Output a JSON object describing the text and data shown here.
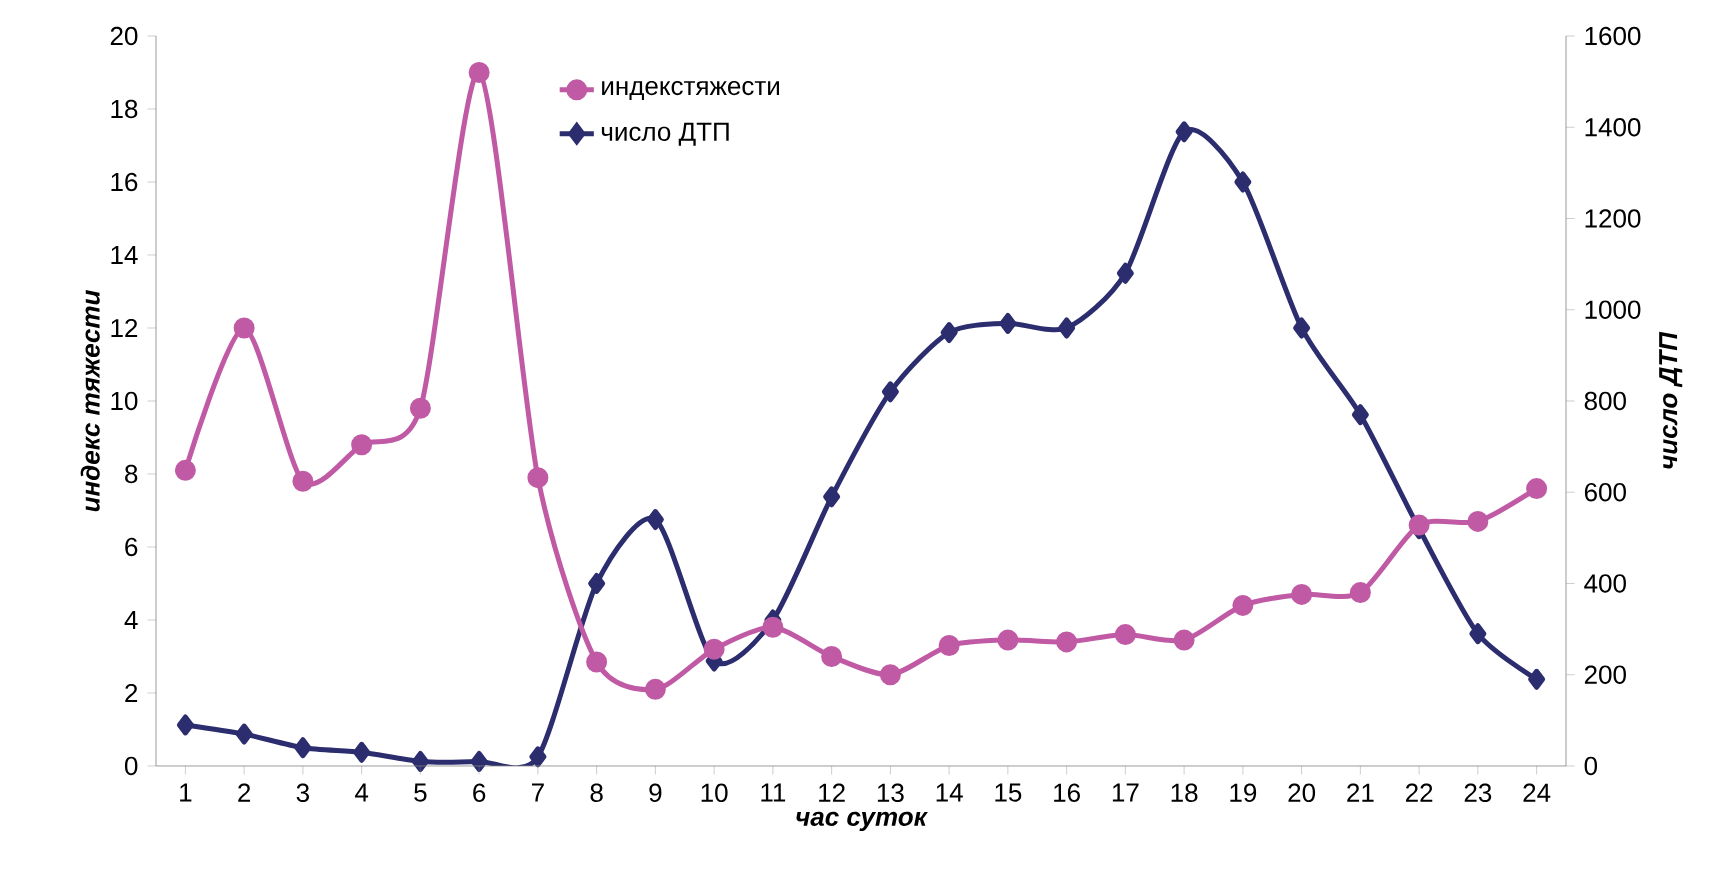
{
  "chart_data": {
    "type": "line",
    "xlabel": "час суток",
    "ylabel": "индекс тяжести",
    "y2label": "число ДТП",
    "categories": [
      "1",
      "2",
      "3",
      "4",
      "5",
      "6",
      "7",
      "8",
      "9",
      "10",
      "11",
      "12",
      "13",
      "14",
      "15",
      "16",
      "17",
      "18",
      "19",
      "20",
      "21",
      "22",
      "23",
      "24"
    ],
    "series": [
      {
        "name": "индекстяжести",
        "color": "#c05aa5",
        "marker": "circle",
        "values": [
          8.1,
          12.0,
          7.8,
          8.8,
          9.8,
          19.0,
          7.9,
          2.85,
          2.1,
          3.2,
          3.8,
          3.0,
          2.5,
          3.3,
          3.45,
          3.4,
          3.6,
          3.45,
          4.4,
          4.7,
          4.75,
          6.6,
          6.7,
          7.6
        ]
      },
      {
        "name": "число ДТП",
        "color": "#2b2d6e",
        "marker": "diamond",
        "axis": "y2",
        "values": [
          90,
          70,
          40,
          30,
          10,
          10,
          20,
          400,
          540,
          230,
          320,
          590,
          820,
          950,
          970,
          960,
          1080,
          1390,
          1280,
          960,
          770,
          520,
          290,
          190
        ]
      }
    ],
    "ylim": [
      0,
      20
    ],
    "yticks": [
      0,
      2,
      4,
      6,
      8,
      10,
      12,
      14,
      16,
      18,
      20
    ],
    "y2lim": [
      0,
      1600
    ],
    "y2ticks": [
      0,
      200,
      400,
      600,
      800,
      1000,
      1200,
      1400,
      1600
    ],
    "legend": "top"
  }
}
